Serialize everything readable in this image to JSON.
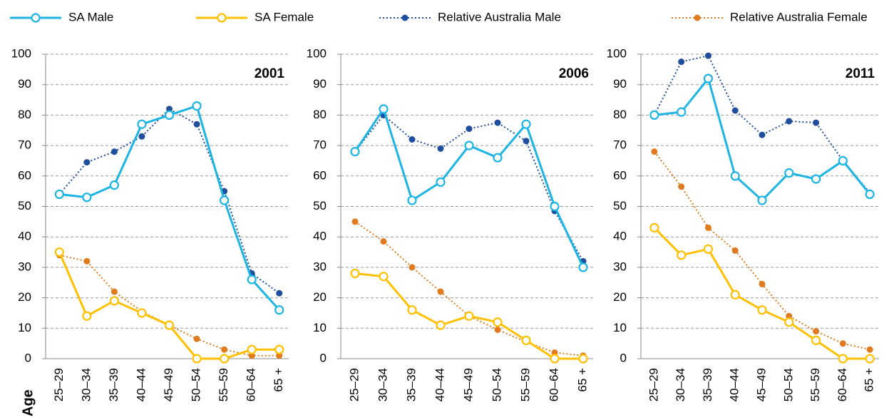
{
  "chart_data": [
    {
      "type": "line",
      "title": "2001",
      "xlabel": "Age",
      "categories": [
        "25–29",
        "30–34",
        "35–39",
        "40–44",
        "45–49",
        "50–54",
        "55–59",
        "60–64",
        "65 +"
      ],
      "ylim": [
        0,
        100
      ],
      "yticks": [
        0,
        10,
        20,
        30,
        40,
        50,
        60,
        70,
        80,
        90,
        100
      ],
      "grid": true,
      "series": [
        {
          "name": "SA Male",
          "color": "#1cb5e3",
          "line": "solid",
          "marker": "open-circle",
          "values": [
            54,
            53,
            57,
            77,
            80,
            83,
            52,
            26,
            16
          ]
        },
        {
          "name": "SA Female",
          "color": "#ffc000",
          "line": "solid",
          "marker": "open-circle",
          "values": [
            35,
            14,
            19,
            15,
            11,
            0,
            0,
            3,
            3
          ]
        },
        {
          "name": "Relative Australia Male",
          "color": "#1f4e9c",
          "line": "dotted",
          "marker": "dot",
          "values": [
            54,
            64.5,
            68,
            73,
            82,
            77,
            55,
            28,
            21.5
          ]
        },
        {
          "name": "Relative Australia Female",
          "color": "#e07b20",
          "line": "dotted",
          "marker": "dot",
          "values": [
            34,
            32,
            22,
            15.5,
            11,
            6.5,
            3,
            1,
            1
          ]
        }
      ]
    },
    {
      "type": "line",
      "title": "2006",
      "categories": [
        "25–29",
        "30–34",
        "35–39",
        "40–44",
        "45–49",
        "50–54",
        "55–59",
        "60–64",
        "65 +"
      ],
      "ylim": [
        0,
        100
      ],
      "yticks": [
        0,
        10,
        20,
        30,
        40,
        50,
        60,
        70,
        80,
        90,
        100
      ],
      "grid": true,
      "series": [
        {
          "name": "SA Male",
          "color": "#1cb5e3",
          "line": "solid",
          "marker": "open-circle",
          "values": [
            68,
            82,
            52,
            58,
            70,
            66,
            77,
            50,
            30
          ]
        },
        {
          "name": "SA Female",
          "color": "#ffc000",
          "line": "solid",
          "marker": "open-circle",
          "values": [
            28,
            27,
            16,
            11,
            14,
            12,
            6,
            0,
            0
          ]
        },
        {
          "name": "Relative Australia Male",
          "color": "#1f4e9c",
          "line": "dotted",
          "marker": "dot",
          "values": [
            68,
            80,
            72,
            69,
            75.5,
            77.5,
            71.5,
            48.5,
            32
          ]
        },
        {
          "name": "Relative Australia Female",
          "color": "#e07b20",
          "line": "dotted",
          "marker": "dot",
          "values": [
            45,
            38.5,
            30,
            22,
            14,
            9.5,
            5.5,
            2,
            1
          ]
        }
      ]
    },
    {
      "type": "line",
      "title": "2011",
      "categories": [
        "25–29",
        "30–34",
        "35–39",
        "40–44",
        "45–49",
        "50–54",
        "55–59",
        "60–64",
        "65 +"
      ],
      "ylim": [
        0,
        100
      ],
      "yticks": [
        0,
        10,
        20,
        30,
        40,
        50,
        60,
        70,
        80,
        90,
        100
      ],
      "grid": true,
      "series": [
        {
          "name": "SA Male",
          "color": "#1cb5e3",
          "line": "solid",
          "marker": "open-circle",
          "values": [
            80,
            81,
            92,
            60,
            52,
            61,
            59,
            65,
            54
          ]
        },
        {
          "name": "SA Female",
          "color": "#ffc000",
          "line": "solid",
          "marker": "open-circle",
          "values": [
            43,
            34,
            36,
            21,
            16,
            12,
            6,
            0,
            0
          ]
        },
        {
          "name": "Relative Australia Male",
          "color": "#1f4e9c",
          "line": "dotted",
          "marker": "dot",
          "values": [
            80,
            97.5,
            99.5,
            81.5,
            73.5,
            78,
            77.5,
            65,
            54.5
          ]
        },
        {
          "name": "Relative Australia Female",
          "color": "#e07b20",
          "line": "dotted",
          "marker": "dot",
          "values": [
            68,
            56.5,
            43,
            35.5,
            24.5,
            14,
            9,
            5,
            3
          ]
        }
      ]
    }
  ]
}
